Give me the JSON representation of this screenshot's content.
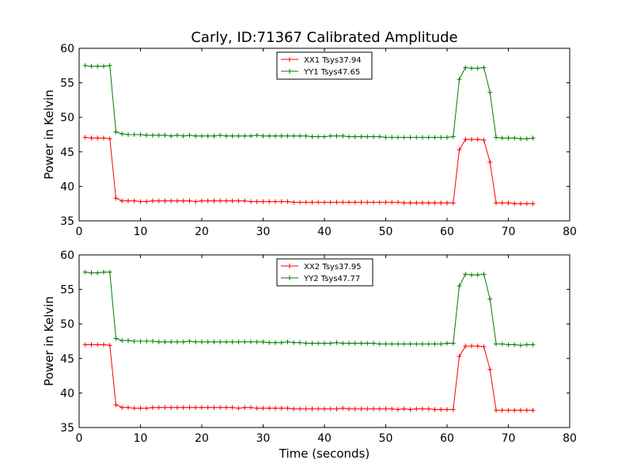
{
  "figure": {
    "title": "Carly, ID:71367 Calibrated Amplitude",
    "shared_xlabel": "Time (seconds)"
  },
  "chart_data": [
    {
      "type": "line",
      "title": "Carly, ID:71367 Calibrated Amplitude",
      "xlabel": "",
      "ylabel": "Power in Kelvin",
      "xlim": [
        0,
        80
      ],
      "ylim": [
        35,
        60
      ],
      "xticks": [
        0,
        10,
        20,
        30,
        40,
        50,
        60,
        70,
        80
      ],
      "yticks": [
        35,
        40,
        45,
        50,
        55,
        60
      ],
      "grid": false,
      "legend": "top-center",
      "x": [
        1,
        2,
        3,
        4,
        5,
        6,
        7,
        8,
        9,
        10,
        11,
        12,
        13,
        14,
        15,
        16,
        17,
        18,
        19,
        20,
        21,
        22,
        23,
        24,
        25,
        26,
        27,
        28,
        29,
        30,
        31,
        32,
        33,
        34,
        35,
        36,
        37,
        38,
        39,
        40,
        41,
        42,
        43,
        44,
        45,
        46,
        47,
        48,
        49,
        50,
        51,
        52,
        53,
        54,
        55,
        56,
        57,
        58,
        59,
        60,
        61,
        62,
        63,
        64,
        65,
        66,
        67,
        68,
        69,
        70,
        71,
        72,
        73,
        74
      ],
      "series": [
        {
          "name": "XX1 Tsys37.94",
          "color": "#ff0000",
          "values": [
            47.1,
            47.0,
            47.0,
            47.0,
            46.9,
            38.3,
            37.9,
            37.9,
            37.9,
            37.8,
            37.8,
            37.9,
            37.9,
            37.9,
            37.9,
            37.9,
            37.9,
            37.9,
            37.8,
            37.9,
            37.9,
            37.9,
            37.9,
            37.9,
            37.9,
            37.9,
            37.9,
            37.8,
            37.8,
            37.8,
            37.8,
            37.8,
            37.8,
            37.8,
            37.7,
            37.7,
            37.7,
            37.7,
            37.7,
            37.7,
            37.7,
            37.7,
            37.7,
            37.7,
            37.7,
            37.7,
            37.7,
            37.7,
            37.7,
            37.7,
            37.7,
            37.7,
            37.6,
            37.6,
            37.6,
            37.6,
            37.6,
            37.6,
            37.6,
            37.6,
            37.6,
            45.3,
            46.8,
            46.8,
            46.8,
            46.7,
            43.5,
            37.6,
            37.6,
            37.6,
            37.5,
            37.5,
            37.5,
            37.5
          ]
        },
        {
          "name": "YY1 Tsys47.65",
          "color": "#008000",
          "values": [
            57.5,
            57.4,
            57.4,
            57.4,
            57.5,
            47.9,
            47.6,
            47.5,
            47.5,
            47.5,
            47.4,
            47.4,
            47.4,
            47.4,
            47.3,
            47.4,
            47.3,
            47.4,
            47.3,
            47.3,
            47.3,
            47.3,
            47.4,
            47.3,
            47.3,
            47.3,
            47.3,
            47.3,
            47.4,
            47.3,
            47.3,
            47.3,
            47.3,
            47.3,
            47.3,
            47.3,
            47.3,
            47.2,
            47.2,
            47.2,
            47.3,
            47.3,
            47.3,
            47.2,
            47.2,
            47.2,
            47.2,
            47.2,
            47.2,
            47.1,
            47.1,
            47.1,
            47.1,
            47.1,
            47.1,
            47.1,
            47.1,
            47.1,
            47.1,
            47.1,
            47.2,
            55.5,
            57.2,
            57.1,
            57.1,
            57.2,
            53.6,
            47.1,
            47.0,
            47.0,
            47.0,
            46.9,
            46.9,
            47.0
          ]
        }
      ]
    },
    {
      "type": "line",
      "title": "",
      "xlabel": "Time (seconds)",
      "ylabel": "Power in Kelvin",
      "xlim": [
        0,
        80
      ],
      "ylim": [
        35,
        60
      ],
      "xticks": [
        0,
        10,
        20,
        30,
        40,
        50,
        60,
        70,
        80
      ],
      "yticks": [
        35,
        40,
        45,
        50,
        55,
        60
      ],
      "grid": false,
      "legend": "top-center",
      "x": [
        1,
        2,
        3,
        4,
        5,
        6,
        7,
        8,
        9,
        10,
        11,
        12,
        13,
        14,
        15,
        16,
        17,
        18,
        19,
        20,
        21,
        22,
        23,
        24,
        25,
        26,
        27,
        28,
        29,
        30,
        31,
        32,
        33,
        34,
        35,
        36,
        37,
        38,
        39,
        40,
        41,
        42,
        43,
        44,
        45,
        46,
        47,
        48,
        49,
        50,
        51,
        52,
        53,
        54,
        55,
        56,
        57,
        58,
        59,
        60,
        61,
        62,
        63,
        64,
        65,
        66,
        67,
        68,
        69,
        70,
        71,
        72,
        73,
        74
      ],
      "series": [
        {
          "name": "XX2 Tsys37.95",
          "color": "#ff0000",
          "values": [
            47.0,
            47.0,
            47.0,
            47.0,
            46.9,
            38.3,
            37.9,
            37.9,
            37.8,
            37.8,
            37.8,
            37.9,
            37.9,
            37.9,
            37.9,
            37.9,
            37.9,
            37.9,
            37.9,
            37.9,
            37.9,
            37.9,
            37.9,
            37.9,
            37.9,
            37.8,
            37.9,
            37.9,
            37.8,
            37.8,
            37.8,
            37.8,
            37.8,
            37.8,
            37.7,
            37.7,
            37.7,
            37.7,
            37.7,
            37.7,
            37.7,
            37.7,
            37.8,
            37.7,
            37.7,
            37.7,
            37.7,
            37.7,
            37.7,
            37.7,
            37.7,
            37.6,
            37.7,
            37.6,
            37.7,
            37.7,
            37.7,
            37.6,
            37.6,
            37.6,
            37.6,
            45.3,
            46.8,
            46.8,
            46.8,
            46.7,
            43.4,
            37.5,
            37.5,
            37.5,
            37.5,
            37.5,
            37.5,
            37.5
          ]
        },
        {
          "name": "YY2 Tsys47.77",
          "color": "#008000",
          "values": [
            57.5,
            57.4,
            57.4,
            57.5,
            57.5,
            47.9,
            47.6,
            47.6,
            47.5,
            47.5,
            47.5,
            47.5,
            47.4,
            47.4,
            47.4,
            47.4,
            47.4,
            47.5,
            47.4,
            47.4,
            47.4,
            47.4,
            47.4,
            47.4,
            47.4,
            47.4,
            47.4,
            47.4,
            47.4,
            47.4,
            47.3,
            47.3,
            47.3,
            47.4,
            47.3,
            47.3,
            47.2,
            47.2,
            47.2,
            47.2,
            47.2,
            47.3,
            47.2,
            47.2,
            47.2,
            47.2,
            47.2,
            47.2,
            47.1,
            47.1,
            47.1,
            47.1,
            47.1,
            47.1,
            47.1,
            47.1,
            47.1,
            47.1,
            47.1,
            47.2,
            47.2,
            55.5,
            57.2,
            57.1,
            57.1,
            57.2,
            53.6,
            47.1,
            47.1,
            47.0,
            47.0,
            46.9,
            47.0,
            47.0
          ]
        }
      ]
    }
  ]
}
